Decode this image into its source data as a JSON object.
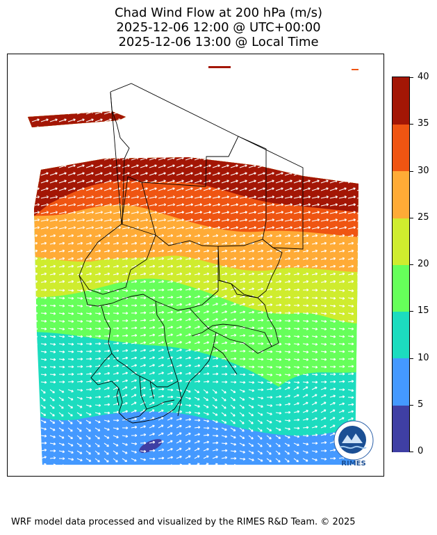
{
  "title": {
    "line1": "Chad Wind Flow at 200 hPa (m/s)",
    "line2": "2025-12-06 12:00 @ UTC+00:00",
    "line3": "2025-12-06 13:00 @ Local Time"
  },
  "colorbar": {
    "unit": "m/s",
    "levels": [
      {
        "min": 0,
        "max": 5,
        "color": "#3f3fa4"
      },
      {
        "min": 5,
        "max": 10,
        "color": "#4499ff"
      },
      {
        "min": 10,
        "max": 15,
        "color": "#1cdcbf"
      },
      {
        "min": 15,
        "max": 20,
        "color": "#66ff5a"
      },
      {
        "min": 20,
        "max": 25,
        "color": "#cfec2e"
      },
      {
        "min": 25,
        "max": 30,
        "color": "#ffab36"
      },
      {
        "min": 30,
        "max": 35,
        "color": "#ef5512"
      },
      {
        "min": 35,
        "max": 40,
        "color": "#a31605"
      }
    ],
    "tick_labels": [
      "0",
      "5",
      "10",
      "15",
      "20",
      "25",
      "30",
      "35",
      "40"
    ]
  },
  "logo": {
    "text": "RIMES",
    "name": "rimes-logo"
  },
  "footer": "WRF model data processed and visualized by the RIMES R&D Team. © 2025"
}
